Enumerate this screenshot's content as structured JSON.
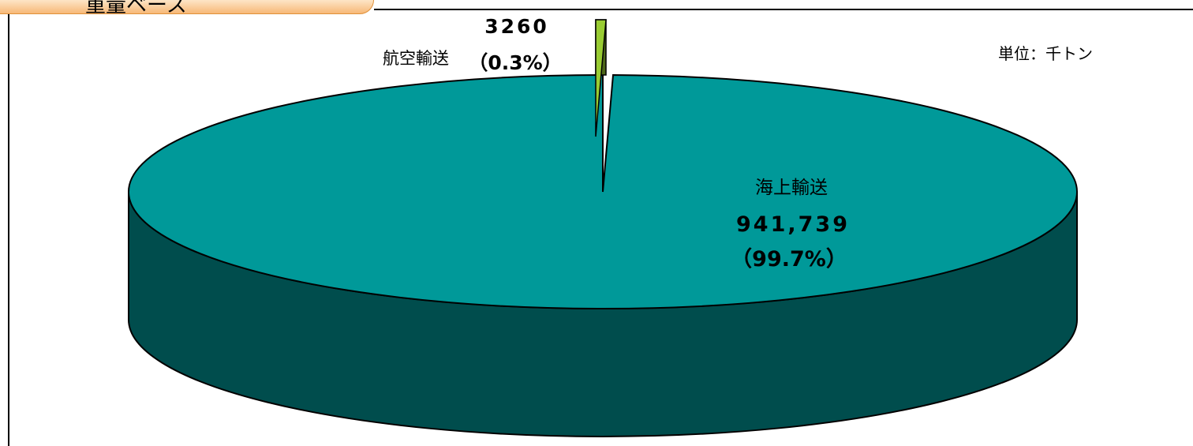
{
  "header": {
    "tab_label": "重量ベース"
  },
  "unit_label": "単位：千トン",
  "colors": {
    "sea_top": "#009999",
    "sea_side": "#004d4d",
    "air_top": "#99cc33",
    "air_side": "#4d6619",
    "outline": "#000000",
    "tab_border": "#e0913a",
    "tab_fill": "#f7b877"
  },
  "chart_data": {
    "type": "pie",
    "style": "3d",
    "title": "",
    "unit": "千トン",
    "slices": [
      {
        "label": "海上輸送",
        "value": 941739,
        "value_text": "941,739",
        "percent": 99.7,
        "percent_text": "（99.7%）"
      },
      {
        "label": "航空輸送",
        "value": 3260,
        "value_text": "3260",
        "percent": 0.3,
        "percent_text": "（0.3%）",
        "exploded": true
      }
    ]
  }
}
